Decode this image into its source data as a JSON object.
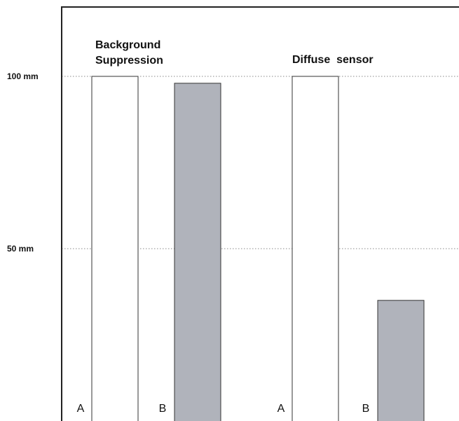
{
  "chart_data": {
    "type": "bar",
    "unit": "mm",
    "ylim": [
      0,
      120
    ],
    "grid": true,
    "yticks": [
      {
        "value": 100,
        "label": "100 mm"
      },
      {
        "value": 50,
        "label": "50 mm"
      }
    ],
    "groups": [
      {
        "title_lines": [
          "Background",
          "Suppression"
        ],
        "bars": [
          {
            "category": "A",
            "value": 100
          },
          {
            "category": "B",
            "value": 98
          }
        ]
      },
      {
        "title_lines": [
          "Diffuse  sensor"
        ],
        "bars": [
          {
            "category": "A",
            "value": 100
          },
          {
            "category": "B",
            "value": 35
          }
        ]
      }
    ],
    "colors": {
      "A": "#ffffff",
      "B": "#b0b3bb",
      "outline": "#333333",
      "grid": "#888888",
      "axis": "#222222"
    }
  }
}
